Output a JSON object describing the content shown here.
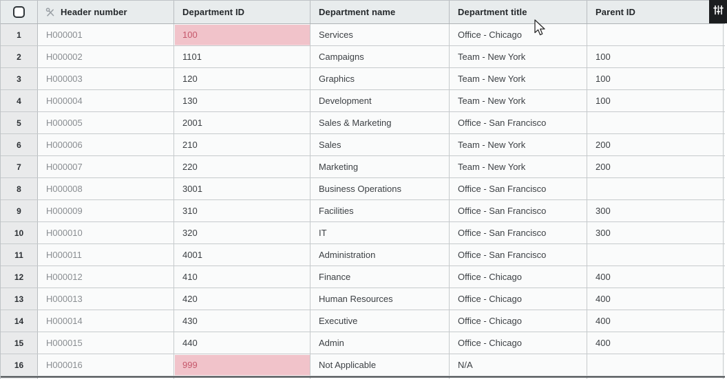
{
  "table": {
    "columns": [
      {
        "key": "header_number",
        "label": "Header number"
      },
      {
        "key": "department_id",
        "label": "Department ID"
      },
      {
        "key": "department_name",
        "label": "Department name"
      },
      {
        "key": "department_title",
        "label": "Department title"
      },
      {
        "key": "parent_id",
        "label": "Parent ID"
      }
    ],
    "rows": [
      {
        "num": "1",
        "header_number": "H000001",
        "department_id": "100",
        "id_invalid": true,
        "department_name": "Services",
        "department_title": "Office - Chicago",
        "parent_id": ""
      },
      {
        "num": "2",
        "header_number": "H000002",
        "department_id": "1101",
        "id_invalid": false,
        "department_name": "Campaigns",
        "department_title": "Team - New York",
        "parent_id": "100"
      },
      {
        "num": "3",
        "header_number": "H000003",
        "department_id": "120",
        "id_invalid": false,
        "department_name": "Graphics",
        "department_title": "Team - New York",
        "parent_id": "100"
      },
      {
        "num": "4",
        "header_number": "H000004",
        "department_id": "130",
        "id_invalid": false,
        "department_name": "Development",
        "department_title": "Team - New York",
        "parent_id": "100"
      },
      {
        "num": "5",
        "header_number": "H000005",
        "department_id": "2001",
        "id_invalid": false,
        "department_name": "Sales & Marketing",
        "department_title": "Office - San Francisco",
        "parent_id": ""
      },
      {
        "num": "6",
        "header_number": "H000006",
        "department_id": "210",
        "id_invalid": false,
        "department_name": "Sales",
        "department_title": "Team - New York",
        "parent_id": "200"
      },
      {
        "num": "7",
        "header_number": "H000007",
        "department_id": "220",
        "id_invalid": false,
        "department_name": "Marketing",
        "department_title": "Team - New York",
        "parent_id": "200"
      },
      {
        "num": "8",
        "header_number": "H000008",
        "department_id": "3001",
        "id_invalid": false,
        "department_name": "Business Operations",
        "department_title": "Office - San Francisco",
        "parent_id": ""
      },
      {
        "num": "9",
        "header_number": "H000009",
        "department_id": "310",
        "id_invalid": false,
        "department_name": "Facilities",
        "department_title": "Office - San Francisco",
        "parent_id": "300"
      },
      {
        "num": "10",
        "header_number": "H000010",
        "department_id": "320",
        "id_invalid": false,
        "department_name": "IT",
        "department_title": "Office - San Francisco",
        "parent_id": "300"
      },
      {
        "num": "11",
        "header_number": "H000011",
        "department_id": "4001",
        "id_invalid": false,
        "department_name": "Administration",
        "department_title": "Office - San Francisco",
        "parent_id": ""
      },
      {
        "num": "12",
        "header_number": "H000012",
        "department_id": "410",
        "id_invalid": false,
        "department_name": "Finance",
        "department_title": "Office - Chicago",
        "parent_id": "400"
      },
      {
        "num": "13",
        "header_number": "H000013",
        "department_id": "420",
        "id_invalid": false,
        "department_name": "Human Resources",
        "department_title": "Office - Chicago",
        "parent_id": "400"
      },
      {
        "num": "14",
        "header_number": "H000014",
        "department_id": "430",
        "id_invalid": false,
        "department_name": "Executive",
        "department_title": "Office - Chicago",
        "parent_id": "400"
      },
      {
        "num": "15",
        "header_number": "H000015",
        "department_id": "440",
        "id_invalid": false,
        "department_name": "Admin",
        "department_title": "Office - Chicago",
        "parent_id": "400"
      },
      {
        "num": "16",
        "header_number": "H000016",
        "department_id": "999",
        "id_invalid": true,
        "department_name": "Not Applicable",
        "department_title": "N/A",
        "parent_id": ""
      }
    ]
  },
  "toolbar": {
    "options_icon": "sliders-icon"
  },
  "icons": {
    "header_number_icon": "unlink-icon",
    "select_all": "checkbox"
  },
  "colors": {
    "header_bg": "#e8eced",
    "gutter_bg": "#e9eaeb",
    "row_bg": "#fafbfb",
    "invalid_bg": "#f1c3ca",
    "invalid_text": "#c5576a",
    "black_button_bg": "#1b1d1f"
  }
}
